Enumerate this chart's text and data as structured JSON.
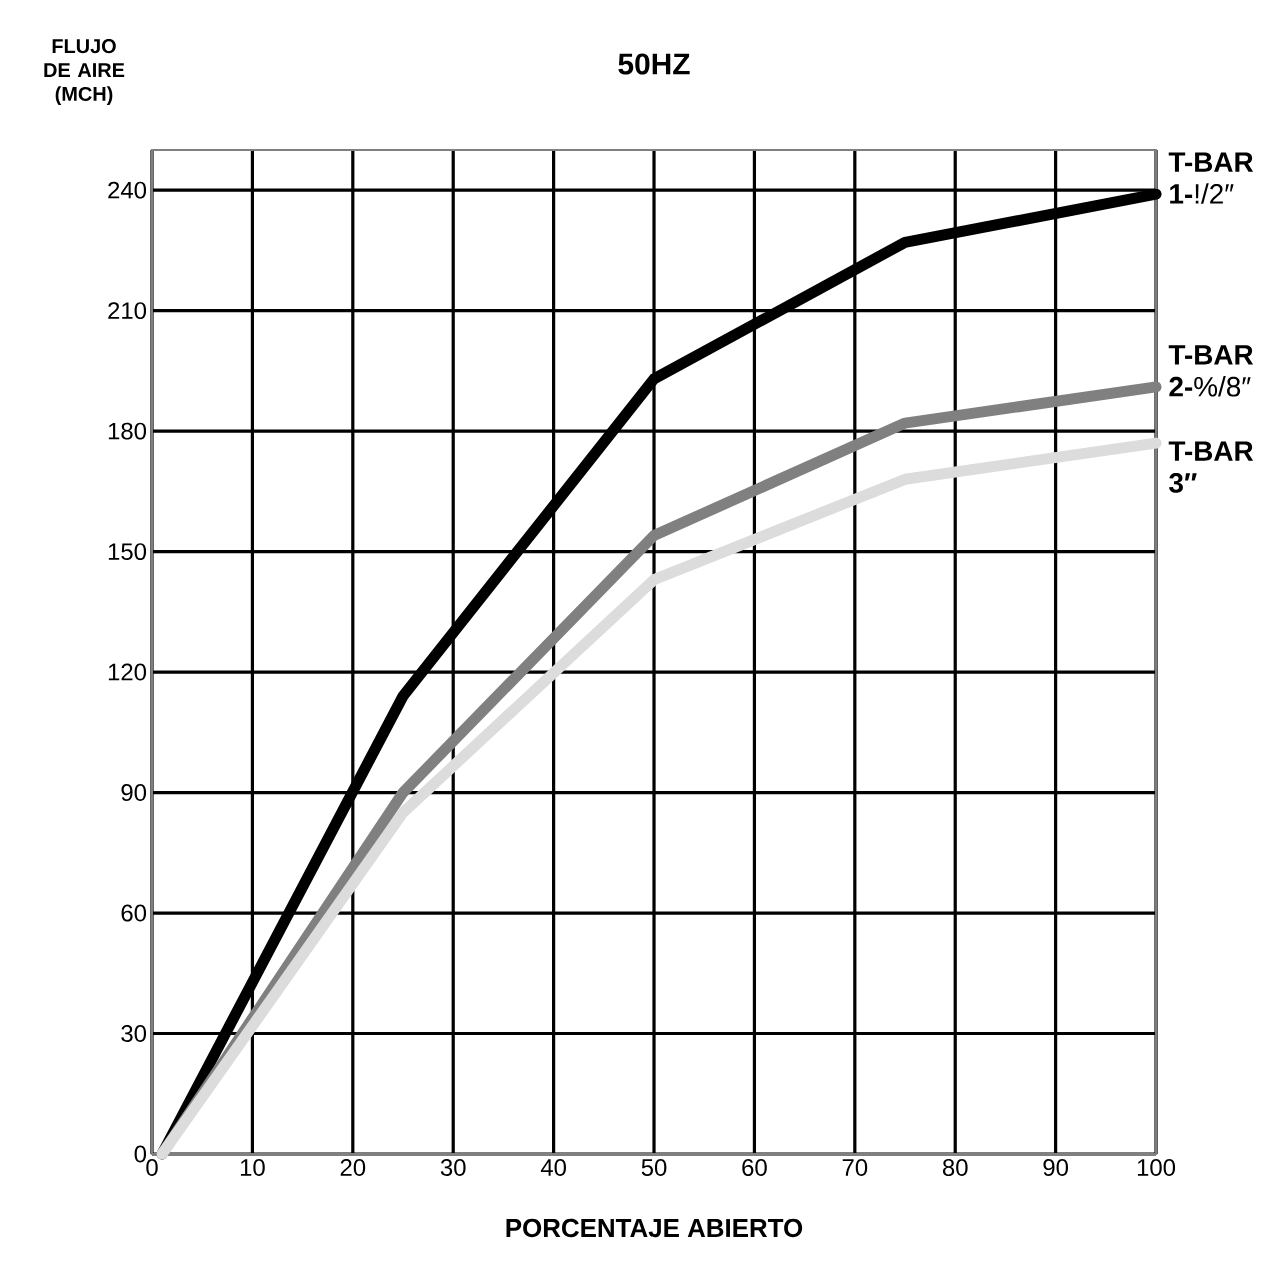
{
  "chart_data": {
    "type": "line",
    "title": "50HZ",
    "xlabel": "PORCENTAJE ABIERTO",
    "ylabel": "FLUJO DE AIRE (MCH)",
    "x": [
      1,
      25,
      50,
      75,
      100
    ],
    "series": [
      {
        "name": "**T-BAR 1-**!/2″",
        "color": "#000000",
        "values": [
          0,
          114,
          193,
          227,
          239
        ]
      },
      {
        "name": "**T-BAR 2-**%/8″",
        "color": "#808080",
        "values": [
          0,
          90,
          154,
          182,
          191
        ]
      },
      {
        "name": "**T-BAR 3″**",
        "color": "#dcdcdc",
        "values": [
          0,
          85,
          143,
          168,
          177
        ]
      }
    ],
    "xlim": [
      0,
      100
    ],
    "xticks": [
      0,
      10,
      20,
      30,
      40,
      50,
      60,
      70,
      80,
      90,
      100
    ],
    "ylim": [
      0,
      250
    ],
    "yticks": [
      0,
      30,
      60,
      90,
      120,
      150,
      180,
      210,
      240
    ],
    "grid": true,
    "legend": false
  }
}
